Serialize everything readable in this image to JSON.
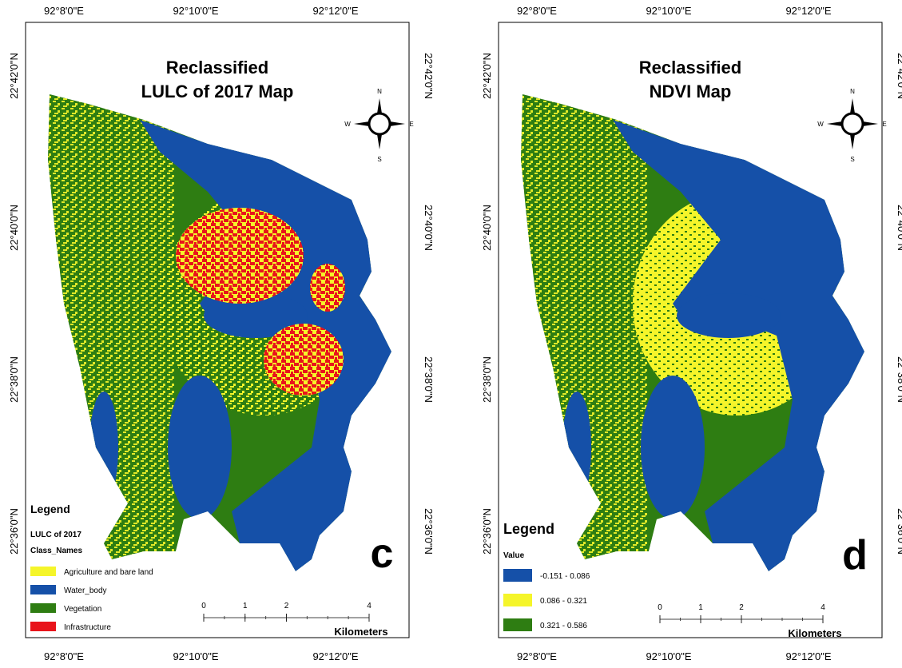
{
  "panels": [
    {
      "title": [
        "Reclassified",
        "LULC of 2017 Map"
      ],
      "letter": "c",
      "top_labels": [
        "92°8'0\"E",
        "92°10'0\"E",
        "92°12'0\"E"
      ],
      "bottom_labels": [
        "92°8'0\"E",
        "92°10'0\"E",
        "92°12'0\"E"
      ],
      "left_labels": [
        "22°42'0\"N",
        "22°40'0\"N",
        "22°38'0\"N",
        "22°36'0\"N"
      ],
      "right_labels": [
        "22°42'0\"N",
        "22°40'0\"N",
        "22°38'0\"N",
        "22°36'0\"N"
      ],
      "compass": [
        "N",
        "E",
        "S",
        "W"
      ],
      "legend": {
        "title": "Legend",
        "subtitles": [
          "LULC of 2017",
          "Class_Names"
        ],
        "items": [
          {
            "label": "Agriculture and bare land",
            "color": "#f5f52a"
          },
          {
            "label": "Water_body",
            "color": "#1550a8"
          },
          {
            "label": "Vegetation",
            "color": "#2e7d12"
          },
          {
            "label": "Infrastructure",
            "color": "#e8141b"
          }
        ]
      },
      "scale": {
        "ticks": [
          0,
          1,
          2,
          4
        ],
        "unit": "Kilometers"
      }
    },
    {
      "title": [
        "Reclassified",
        "NDVI Map"
      ],
      "letter": "d",
      "top_labels": [
        "92°8'0\"E",
        "92°10'0\"E",
        "92°12'0\"E"
      ],
      "bottom_labels": [
        "92°8'0\"E",
        "92°10'0\"E",
        "92°12'0\"E"
      ],
      "left_labels": [
        "22°42'0\"N",
        "22°40'0\"N",
        "22°38'0\"N",
        "22°36'0\"N"
      ],
      "right_labels": [
        "22°42'0\"N",
        "22°40'0\"N",
        "22°38'0\"N",
        "22°36'0\"N"
      ],
      "compass": [
        "N",
        "E",
        "S",
        "W"
      ],
      "legend": {
        "title": "Legend",
        "subtitles": [
          "Value"
        ],
        "items": [
          {
            "label": "-0.151 - 0.086",
            "color": "#1550a8"
          },
          {
            "label": "0.086 - 0.321",
            "color": "#f5f52a"
          },
          {
            "label": "0.321 - 0.586",
            "color": "#2e7d12"
          }
        ]
      },
      "scale": {
        "ticks": [
          0,
          1,
          2,
          4
        ],
        "unit": "Kilometers"
      }
    }
  ]
}
